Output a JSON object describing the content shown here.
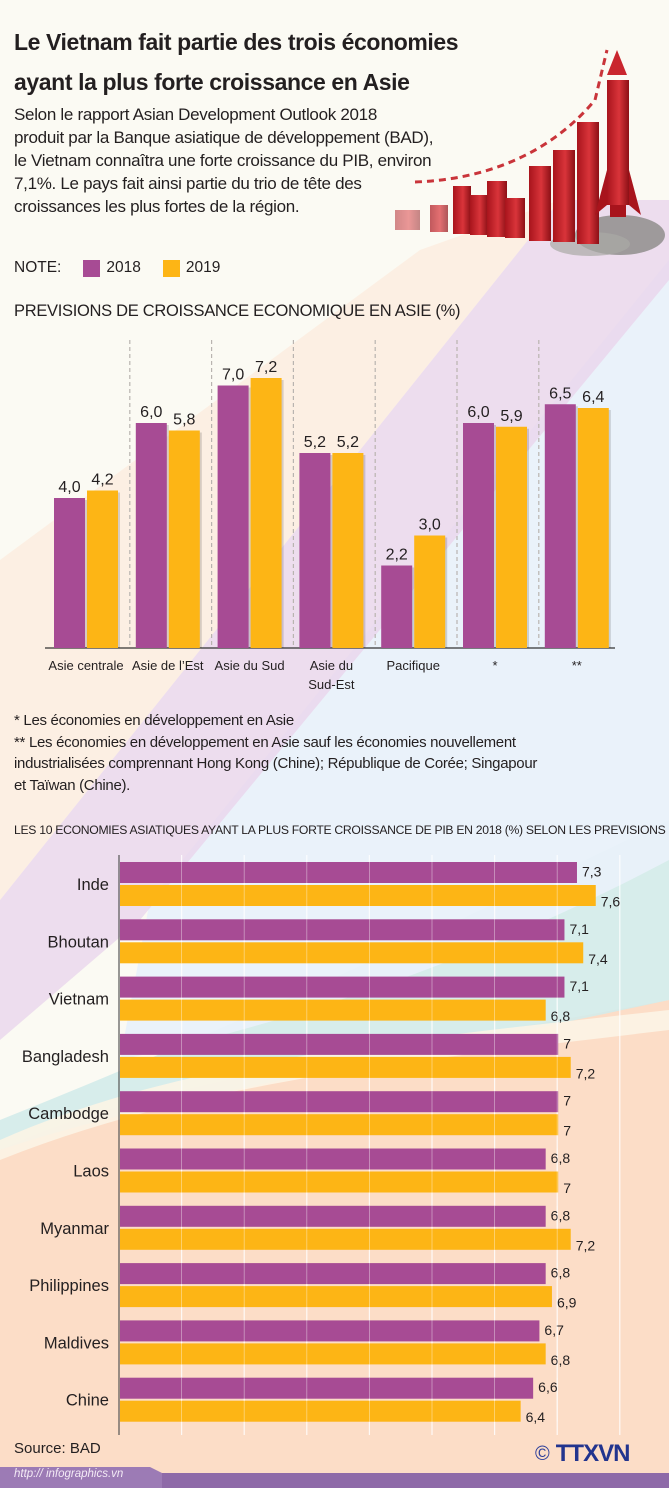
{
  "header": {
    "title_line1": "Le Vietnam fait partie des trois économies",
    "title_line2": "ayant la plus forte croissance en Asie",
    "intro_lines": [
      "Selon le rapport Asian Development Outlook 2018",
      "produit par la Banque asiatique de développement (BAD),",
      "le Vietnam connaîtra une forte croissance du PIB, environ",
      "7,1%. Le pays fait ainsi partie du trio de tête des",
      "croissances les plus fortes de la région."
    ],
    "illustration": "rocket-growth-bars-icon"
  },
  "legend": {
    "label": "NOTE:",
    "items": [
      {
        "name": "2018",
        "color": "#a74b94"
      },
      {
        "name": "2019",
        "color": "#fdb515"
      }
    ]
  },
  "footnotes": {
    "note1": "* Les économies en développement en Asie",
    "note2_lines": [
      "** Les économies en développement en Asie sauf les économies nouvellement",
      "industrialisées comprennant Hong Kong (Chine); République de Corée; Singapour",
      "et Taïwan (Chine)."
    ]
  },
  "footer": {
    "source": "Source: BAD",
    "url": "http:// infographics.vn",
    "copyright_symbol": "©",
    "brand": "TTXVN"
  },
  "colors": {
    "series_2018": "#a74b94",
    "series_2019": "#fdb515",
    "footer_bar": "#8e6aa8",
    "brand_blue": "#22348e"
  },
  "chart_data": [
    {
      "type": "bar",
      "orientation": "vertical",
      "title": "PREVISIONS DE CROISSANCE ECONOMIQUE EN ASIE (%)",
      "categories": [
        "Asie centrale",
        "Asie de l'Est",
        "Asie du Sud",
        "Asie du Sud-Est",
        "Pacifique",
        "*",
        "**"
      ],
      "category_labels": [
        [
          "Asie centrale"
        ],
        [
          "Asie de l’Est"
        ],
        [
          "Asie du Sud"
        ],
        [
          "Asie du",
          "Sud-Est"
        ],
        [
          "Pacifique"
        ],
        [
          "*"
        ],
        [
          "**"
        ]
      ],
      "series": [
        {
          "name": "2018",
          "values": [
            4.0,
            6.0,
            7.0,
            5.2,
            2.2,
            6.0,
            6.5
          ],
          "labels": [
            "4,0",
            "6,0",
            "7,0",
            "5,2",
            "2,2",
            "6,0",
            "6,5"
          ]
        },
        {
          "name": "2019",
          "values": [
            4.2,
            5.8,
            7.2,
            5.2,
            3.0,
            5.9,
            6.4
          ],
          "labels": [
            "4,2",
            "5,8",
            "7,2",
            "5,2",
            "3,0",
            "5,9",
            "6,4"
          ]
        }
      ],
      "xlabel": "",
      "ylabel": "%",
      "ylim": [
        0,
        8
      ],
      "grid": "dashed vertical separators",
      "legend": "top-left"
    },
    {
      "type": "bar",
      "orientation": "horizontal",
      "title": "LES 10 ECONOMIES ASIATIQUES AYANT LA PLUS FORTE CROISSANCE  DE PIB EN 2018 (%) SELON LES PREVISIONS",
      "categories": [
        "Inde",
        "Bhoutan",
        "Vietnam",
        "Bangladesh",
        "Cambodge",
        "Laos",
        "Myanmar",
        "Philippines",
        "Maldives",
        "Chine"
      ],
      "series": [
        {
          "name": "2018",
          "values": [
            7.3,
            7.1,
            7.1,
            7.0,
            7.0,
            6.8,
            6.8,
            6.8,
            6.7,
            6.6
          ],
          "labels": [
            "7,3",
            "7,1",
            "7,1",
            "7",
            "7",
            "6,8",
            "6,8",
            "6,8",
            "6,7",
            "6,6"
          ]
        },
        {
          "name": "2019",
          "values": [
            7.6,
            7.4,
            6.8,
            7.2,
            7.0,
            7.0,
            7.2,
            6.9,
            6.8,
            6.4
          ],
          "labels": [
            "7,6",
            "7,4",
            "6,8",
            "7,2",
            "7",
            "7",
            "7,2",
            "6,9",
            "6,8",
            "6,4"
          ]
        }
      ],
      "xlim": [
        0,
        8
      ],
      "grid": "vertical gridlines every 1 unit"
    }
  ]
}
